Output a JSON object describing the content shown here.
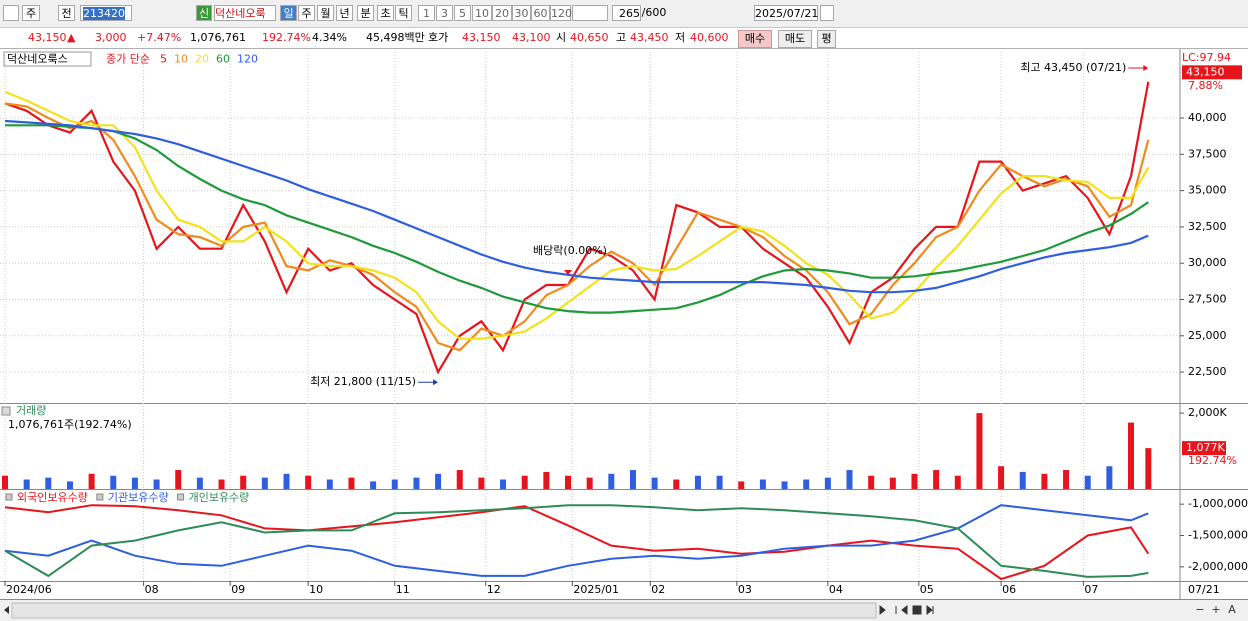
{
  "toolbar": {
    "items": [
      "주",
      "전",
      "213420",
      "신",
      "덕산네오룩",
      "일",
      "주",
      "월",
      "년",
      "분",
      "초",
      "틱",
      "1",
      "3",
      "5",
      "10",
      "20",
      "30",
      "60",
      "120",
      "265",
      "/600",
      "2025/07/21"
    ]
  },
  "quote": {
    "items": [
      "43,150",
      "▲",
      "3,000",
      "+7.47%",
      "1,076,761",
      "192.74%",
      "4.34%",
      "45,498백만",
      "호가",
      "43,150",
      "43,100",
      "시",
      "40,650",
      "고",
      "43,450",
      "저",
      "40,600",
      "매수",
      "매도",
      "평"
    ]
  },
  "scrollbar": {
    "buttons": [
      "−",
      "+",
      "A"
    ]
  },
  "chart_data": [
    {
      "type": "line",
      "title": "덕산네오룩스",
      "subtitle": "종가 단순",
      "x": [
        0,
        5,
        10,
        15,
        20,
        25,
        30,
        35,
        40,
        45,
        50,
        55,
        60,
        65,
        70,
        75,
        80,
        85,
        90,
        95,
        100,
        105,
        110,
        115,
        120,
        125,
        130,
        135,
        140,
        145,
        150,
        155,
        160,
        165,
        170,
        175,
        180,
        185,
        190,
        195,
        200,
        205,
        210,
        215,
        220,
        225,
        230,
        235,
        240,
        245,
        250,
        255,
        260,
        264
      ],
      "xlim": [
        0,
        266
      ],
      "ylim": [
        20370,
        44550
      ],
      "yticks": [
        {
          "value": 22500,
          "label": "22,500"
        },
        {
          "value": 25000,
          "label": "25,000"
        },
        {
          "value": 27500,
          "label": "27,500"
        },
        {
          "value": 30000,
          "label": "30,000"
        },
        {
          "value": 32500,
          "label": "32,500"
        },
        {
          "value": 35000,
          "label": "35,000"
        },
        {
          "value": 37500,
          "label": "37,500"
        },
        {
          "value": 40000,
          "label": "40,000"
        }
      ],
      "grid": true,
      "series": [
        {
          "name": "5",
          "color": "#e8141c",
          "values": [
            41000,
            40500,
            39500,
            39000,
            40500,
            37000,
            35000,
            31000,
            32500,
            31000,
            31000,
            34000,
            31500,
            28000,
            31000,
            29500,
            30000,
            28500,
            27500,
            26500,
            22500,
            25000,
            26000,
            24000,
            27500,
            28500,
            28500,
            31000,
            30500,
            29500,
            27500,
            34000,
            33500,
            32500,
            32500,
            31000,
            30000,
            29000,
            27000,
            24500,
            28000,
            29000,
            31000,
            32500,
            32500,
            37000,
            37000,
            35000,
            35500,
            36000,
            34500,
            32000,
            36000,
            42500
          ]
        },
        {
          "name": "10",
          "color": "#f08a1c",
          "values": [
            41000,
            40800,
            40000,
            39300,
            39800,
            38500,
            36000,
            33000,
            32000,
            31800,
            31200,
            32500,
            32800,
            29800,
            29500,
            30200,
            29800,
            29200,
            28000,
            27000,
            24500,
            24000,
            25500,
            25000,
            26000,
            27800,
            28500,
            29800,
            30800,
            30000,
            28500,
            31000,
            33500,
            33000,
            32500,
            31800,
            30500,
            29500,
            28000,
            25800,
            26500,
            28500,
            30000,
            31800,
            32500,
            35000,
            36800,
            36000,
            35300,
            35800,
            35300,
            33200,
            34000,
            38500
          ]
        },
        {
          "name": "20",
          "color": "#f2e21a",
          "values": [
            41800,
            41200,
            40500,
            39800,
            39500,
            39500,
            38000,
            35000,
            33000,
            32500,
            31500,
            31500,
            32500,
            31500,
            30000,
            29800,
            29800,
            29500,
            29000,
            28000,
            26000,
            24800,
            24800,
            25000,
            25300,
            26200,
            27300,
            28400,
            29500,
            29800,
            29500,
            29600,
            30500,
            31500,
            32500,
            32200,
            31200,
            30000,
            29200,
            27800,
            26200,
            26600,
            28000,
            29700,
            31200,
            33000,
            34800,
            36000,
            36000,
            35700,
            35600,
            34500,
            34500,
            36600
          ]
        },
        {
          "name": "60",
          "color": "#1f9a3a",
          "values": [
            39500,
            39500,
            39500,
            39400,
            39300,
            39100,
            38600,
            37800,
            36700,
            35800,
            35000,
            34400,
            34000,
            33300,
            32800,
            32300,
            31800,
            31200,
            30700,
            30100,
            29400,
            28800,
            28300,
            27700,
            27300,
            26900,
            26700,
            26600,
            26600,
            26700,
            26800,
            26900,
            27300,
            27800,
            28500,
            29100,
            29500,
            29600,
            29500,
            29300,
            29000,
            29000,
            29100,
            29300,
            29500,
            29800,
            30100,
            30500,
            30900,
            31500,
            32100,
            32600,
            33400,
            34200
          ]
        },
        {
          "name": "120",
          "color": "#2f5fe0",
          "values": [
            39800,
            39700,
            39600,
            39500,
            39300,
            39100,
            38900,
            38600,
            38200,
            37700,
            37200,
            36700,
            36200,
            35700,
            35100,
            34600,
            34100,
            33600,
            33000,
            32400,
            31800,
            31200,
            30600,
            30100,
            29700,
            29400,
            29200,
            29000,
            28900,
            28800,
            28700,
            28700,
            28700,
            28700,
            28700,
            28700,
            28600,
            28500,
            28300,
            28100,
            28000,
            28000,
            28100,
            28300,
            28700,
            29100,
            29600,
            30000,
            30400,
            30700,
            30900,
            31100,
            31400,
            31900
          ]
        }
      ],
      "axis_title": "LC:97.94",
      "last": {
        "value": 43150,
        "label": "43,150"
      },
      "change_label": "7.88%",
      "annotations": [
        {
          "text": "최고 43,450 (07/21)",
          "x": 264,
          "y": 43450
        },
        {
          "text": "최저 21,800 (11/15)",
          "x": 100,
          "y": 21800
        },
        {
          "text": "배당락(0.00%)",
          "x": 130
        }
      ]
    },
    {
      "type": "bar",
      "title": "거래량",
      "subtitle": "1,076,761주(192.74%)",
      "x": [
        0,
        5,
        10,
        15,
        20,
        25,
        30,
        35,
        40,
        45,
        50,
        55,
        60,
        65,
        70,
        75,
        80,
        85,
        90,
        95,
        100,
        105,
        110,
        115,
        120,
        125,
        130,
        135,
        140,
        145,
        150,
        155,
        160,
        165,
        170,
        175,
        180,
        185,
        190,
        195,
        200,
        205,
        210,
        215,
        220,
        225,
        230,
        235,
        240,
        245,
        250,
        255,
        260,
        264
      ],
      "xlim": [
        0,
        266
      ],
      "ylim": [
        0,
        2240000
      ],
      "yticks": [
        {
          "value": 2000000,
          "label": "2,000K"
        }
      ],
      "up_color": "#e8141c",
      "down_color": "#2f5fe0",
      "values": [
        350000,
        250000,
        300000,
        200000,
        400000,
        350000,
        300000,
        250000,
        500000,
        300000,
        250000,
        350000,
        300000,
        400000,
        350000,
        250000,
        300000,
        200000,
        250000,
        300000,
        400000,
        500000,
        300000,
        250000,
        350000,
        450000,
        350000,
        300000,
        400000,
        500000,
        300000,
        250000,
        350000,
        350000,
        200000,
        250000,
        200000,
        250000,
        300000,
        500000,
        350000,
        300000,
        400000,
        500000,
        350000,
        2000000,
        600000,
        450000,
        400000,
        500000,
        350000,
        600000,
        1750000,
        1076761
      ],
      "last_label": "1,077K",
      "ratio_label": "192.74%"
    },
    {
      "type": "line",
      "x": [
        0,
        10,
        20,
        30,
        40,
        50,
        60,
        70,
        80,
        90,
        100,
        110,
        120,
        130,
        140,
        150,
        160,
        170,
        180,
        190,
        200,
        210,
        220,
        230,
        240,
        250,
        260,
        264
      ],
      "xlim": [
        0,
        266
      ],
      "ylim": [
        -2226000,
        -774000
      ],
      "yticks": [
        {
          "value": -2000000,
          "label": "-2,000,000"
        },
        {
          "value": -1500000,
          "label": "-1,500,000"
        },
        {
          "value": -1000000,
          "label": "-1,000,000"
        }
      ],
      "xticks": [
        {
          "value": 0,
          "label": "2024/06"
        },
        {
          "value": 32,
          "label": "08"
        },
        {
          "value": 52,
          "label": "09"
        },
        {
          "value": 70,
          "label": "10"
        },
        {
          "value": 90,
          "label": "11"
        },
        {
          "value": 111,
          "label": "12"
        },
        {
          "value": 131,
          "label": "2025/01"
        },
        {
          "value": 149,
          "label": "02"
        },
        {
          "value": 169,
          "label": "03"
        },
        {
          "value": 190,
          "label": "04"
        },
        {
          "value": 211,
          "label": "05"
        },
        {
          "value": 230,
          "label": "06"
        },
        {
          "value": 249,
          "label": "07"
        }
      ],
      "last_date": "07/21",
      "series": [
        {
          "name": "외국인보유수량",
          "color": "#e8141c",
          "values": [
            -1048000,
            -1129000,
            -1016000,
            -1032000,
            -1097000,
            -1177000,
            -1387000,
            -1419000,
            -1355000,
            -1290000,
            -1210000,
            -1129000,
            -1032000,
            -1339000,
            -1661000,
            -1742000,
            -1710000,
            -1790000,
            -1758000,
            -1661000,
            -1581000,
            -1661000,
            -1710000,
            -2194000,
            -1984000,
            -1500000,
            -1371000,
            -1790000
          ]
        },
        {
          "name": "기관보유수량",
          "color": "#2f5fe0",
          "values": [
            -1742000,
            -1823000,
            -1581000,
            -1823000,
            -1952000,
            -1984000,
            -1823000,
            -1661000,
            -1742000,
            -1984000,
            -2065000,
            -2145000,
            -2145000,
            -1984000,
            -1871000,
            -1823000,
            -1871000,
            -1823000,
            -1710000,
            -1661000,
            -1661000,
            -1581000,
            -1387000,
            -1016000,
            -1097000,
            -1177000,
            -1258000,
            -1145000
          ]
        },
        {
          "name": "개인보유수량",
          "color": "#2e8b57",
          "values": [
            -1742000,
            -2145000,
            -1661000,
            -1581000,
            -1419000,
            -1290000,
            -1452000,
            -1419000,
            -1419000,
            -1145000,
            -1129000,
            -1097000,
            -1065000,
            -1016000,
            -1016000,
            -1048000,
            -1097000,
            -1065000,
            -1097000,
            -1145000,
            -1194000,
            -1258000,
            -1387000,
            -1984000,
            -2065000,
            -2161000,
            -2145000,
            -2097000
          ]
        }
      ]
    }
  ]
}
